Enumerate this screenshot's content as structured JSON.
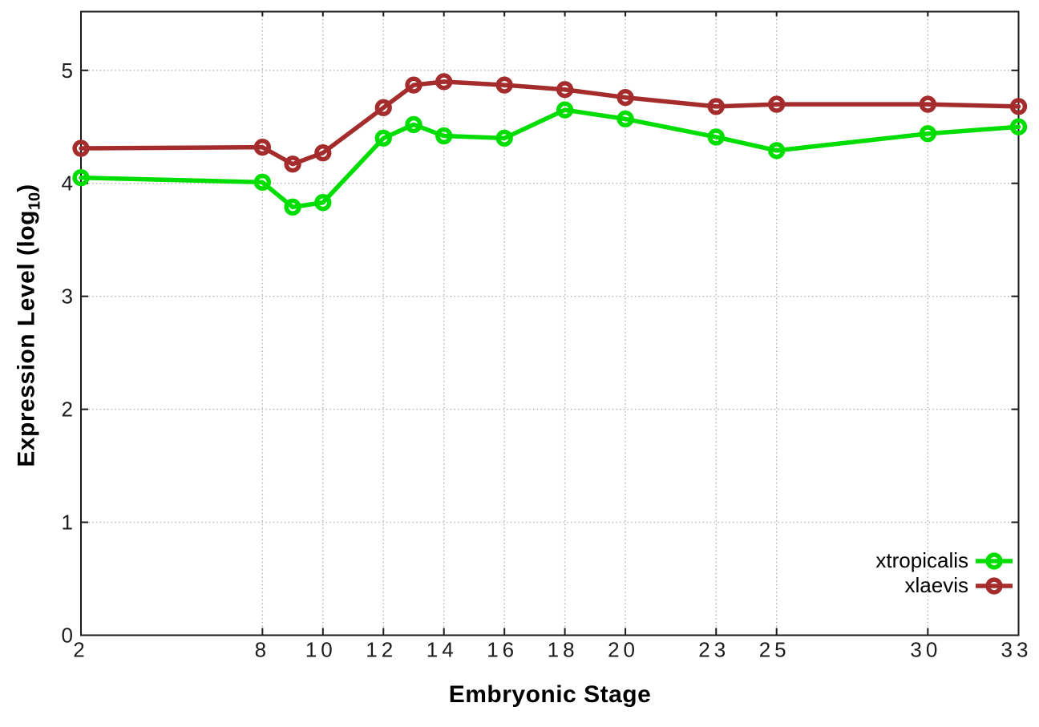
{
  "colors": {
    "background": "#ffffff",
    "axis": "#1a1a1a",
    "grid": "#b3b3b3",
    "tick_text": "#1c1c1c",
    "title_text": "#000000",
    "xtropicalis": "#00dd00",
    "xlaevis": "#a52c2c"
  },
  "chart_data": {
    "type": "line",
    "title": "",
    "xlabel": "Embryonic Stage",
    "ylabel": "Expression Level (log10)",
    "ylabel_parts": {
      "main": "Expression Level (log",
      "sub": "10",
      "end": ")"
    },
    "x": [
      2,
      8,
      9,
      10,
      12,
      13,
      14,
      16,
      18,
      20,
      23,
      25,
      30,
      33
    ],
    "series": [
      {
        "name": "xtropicalis",
        "color": "#00dd00",
        "marker": "open-circle",
        "values": [
          4.05,
          4.01,
          3.79,
          3.83,
          4.4,
          4.52,
          4.42,
          4.4,
          4.65,
          4.57,
          4.41,
          4.29,
          4.44,
          4.5
        ]
      },
      {
        "name": "xlaevis",
        "color": "#a52c2c",
        "marker": "open-circle",
        "values": [
          4.31,
          4.32,
          4.17,
          4.27,
          4.67,
          4.87,
          4.9,
          4.87,
          4.83,
          4.76,
          4.68,
          4.7,
          4.7,
          4.68
        ]
      }
    ],
    "x_ticks": [
      2,
      8,
      10,
      12,
      14,
      16,
      18,
      20,
      23,
      25,
      30,
      33
    ],
    "x_tick_labels": [
      "2",
      "8",
      "10",
      "12",
      "14",
      "16",
      "18",
      "20",
      "23",
      "25",
      "30",
      "33"
    ],
    "y_ticks": [
      0,
      1,
      2,
      3,
      4,
      5
    ],
    "y_tick_labels": [
      "0",
      "1",
      "2",
      "3",
      "4",
      "5"
    ],
    "xlim": [
      2,
      33
    ],
    "ylim": [
      0,
      5.52
    ],
    "grid": "dotted",
    "legend_position": "inside-bottom-right"
  }
}
